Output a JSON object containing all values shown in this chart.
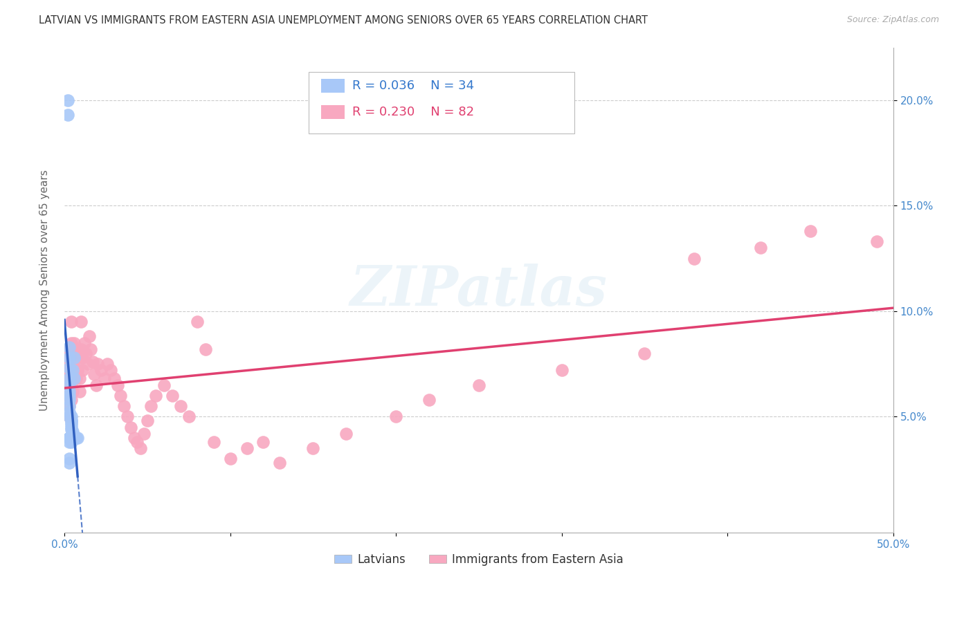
{
  "title": "LATVIAN VS IMMIGRANTS FROM EASTERN ASIA UNEMPLOYMENT AMONG SENIORS OVER 65 YEARS CORRELATION CHART",
  "source": "Source: ZipAtlas.com",
  "ylabel": "Unemployment Among Seniors over 65 years",
  "xlim": [
    0.0,
    0.5
  ],
  "ylim": [
    -0.005,
    0.225
  ],
  "xtick_positions": [
    0.0,
    0.1,
    0.2,
    0.3,
    0.4,
    0.5
  ],
  "xtick_labels": [
    "0.0%",
    "",
    "",
    "",
    "",
    "50.0%"
  ],
  "ytick_positions": [
    0.05,
    0.1,
    0.15,
    0.2
  ],
  "ytick_labels": [
    "5.0%",
    "10.0%",
    "15.0%",
    "20.0%"
  ],
  "legend1_label": "Latvians",
  "legend2_label": "Immigrants from Eastern Asia",
  "r1": 0.036,
  "n1": 34,
  "r2": 0.23,
  "n2": 82,
  "latvian_color": "#a8c8f8",
  "latvian_edge_color": "#a8c8f8",
  "latvian_line_color": "#3060c0",
  "ea_color": "#f8a8c0",
  "ea_edge_color": "#f8a8c0",
  "ea_line_color": "#e04070",
  "watermark": "ZIPatlas",
  "latvian_x": [
    0.002,
    0.002,
    0.003,
    0.003,
    0.003,
    0.003,
    0.003,
    0.003,
    0.003,
    0.003,
    0.003,
    0.003,
    0.003,
    0.004,
    0.004,
    0.004,
    0.004,
    0.004,
    0.004,
    0.004,
    0.005,
    0.005,
    0.005,
    0.006,
    0.006,
    0.007,
    0.008,
    0.003,
    0.003,
    0.003,
    0.003,
    0.003,
    0.003,
    0.004
  ],
  "latvian_y": [
    0.2,
    0.193,
    0.083,
    0.078,
    0.073,
    0.068,
    0.065,
    0.062,
    0.06,
    0.058,
    0.055,
    0.052,
    0.05,
    0.05,
    0.048,
    0.048,
    0.047,
    0.046,
    0.045,
    0.044,
    0.043,
    0.042,
    0.072,
    0.068,
    0.078,
    0.04,
    0.04,
    0.03,
    0.028,
    0.04,
    0.04,
    0.04,
    0.038,
    0.038
  ],
  "ea_x": [
    0.002,
    0.002,
    0.002,
    0.003,
    0.003,
    0.003,
    0.003,
    0.003,
    0.003,
    0.003,
    0.004,
    0.004,
    0.004,
    0.004,
    0.004,
    0.004,
    0.005,
    0.005,
    0.005,
    0.005,
    0.006,
    0.006,
    0.006,
    0.007,
    0.007,
    0.007,
    0.008,
    0.008,
    0.009,
    0.009,
    0.01,
    0.01,
    0.011,
    0.011,
    0.012,
    0.013,
    0.014,
    0.015,
    0.016,
    0.017,
    0.018,
    0.019,
    0.02,
    0.022,
    0.024,
    0.026,
    0.028,
    0.03,
    0.032,
    0.034,
    0.036,
    0.038,
    0.04,
    0.042,
    0.044,
    0.046,
    0.048,
    0.05,
    0.052,
    0.055,
    0.06,
    0.065,
    0.07,
    0.075,
    0.08,
    0.085,
    0.09,
    0.1,
    0.11,
    0.12,
    0.13,
    0.15,
    0.17,
    0.2,
    0.22,
    0.25,
    0.3,
    0.35,
    0.38,
    0.42,
    0.45,
    0.49
  ],
  "ea_y": [
    0.075,
    0.068,
    0.06,
    0.082,
    0.078,
    0.072,
    0.065,
    0.06,
    0.055,
    0.05,
    0.095,
    0.085,
    0.078,
    0.07,
    0.065,
    0.058,
    0.08,
    0.075,
    0.068,
    0.062,
    0.085,
    0.078,
    0.07,
    0.082,
    0.075,
    0.068,
    0.078,
    0.072,
    0.068,
    0.062,
    0.095,
    0.082,
    0.078,
    0.072,
    0.085,
    0.08,
    0.075,
    0.088,
    0.082,
    0.076,
    0.07,
    0.065,
    0.075,
    0.072,
    0.068,
    0.075,
    0.072,
    0.068,
    0.065,
    0.06,
    0.055,
    0.05,
    0.045,
    0.04,
    0.038,
    0.035,
    0.042,
    0.048,
    0.055,
    0.06,
    0.065,
    0.06,
    0.055,
    0.05,
    0.095,
    0.082,
    0.038,
    0.03,
    0.035,
    0.038,
    0.028,
    0.035,
    0.042,
    0.05,
    0.058,
    0.065,
    0.072,
    0.08,
    0.125,
    0.13,
    0.138,
    0.133
  ]
}
